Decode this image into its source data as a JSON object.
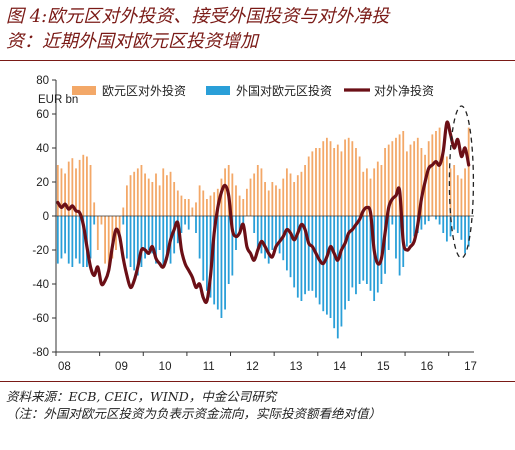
{
  "title_line1": "图 4:欧元区对外投资、接受外国投资与对外净投",
  "title_line2": "资：近期外国对欧元区投资增加",
  "source": "资料来源：ECB, CEIC，WIND，中金公司研究",
  "note": "（注：外国对欧元区投资为负表示资金流向，实际投资额看绝对值）",
  "colors": {
    "outward": "#f3a868",
    "inward": "#2a9fd8",
    "net": "#6b0f16",
    "axis": "#333333",
    "ellipse": "#222222"
  },
  "chart_data": {
    "type": "bar",
    "yunit": "EUR bn",
    "ylim": [
      -80,
      80
    ],
    "yticks": [
      -80,
      -60,
      -40,
      -20,
      0,
      20,
      40,
      60,
      80
    ],
    "xticks": [
      "08",
      "09",
      "10",
      "11",
      "12",
      "13",
      "14",
      "15",
      "16",
      "17"
    ],
    "x_start": 2008.0,
    "x_end": 2017.58,
    "months": 114,
    "legend_position": "top",
    "grid": false,
    "series": [
      {
        "name": "欧元区对外投资",
        "kind": "bar",
        "values": [
          30,
          28,
          25,
          32,
          34,
          28,
          33,
          36,
          35,
          30,
          8,
          -20,
          -5,
          -28,
          -30,
          -25,
          -20,
          -10,
          5,
          18,
          24,
          26,
          28,
          30,
          25,
          22,
          20,
          25,
          18,
          28,
          24,
          26,
          20,
          15,
          12,
          10,
          10,
          5,
          8,
          18,
          15,
          10,
          12,
          14,
          16,
          22,
          28,
          30,
          25,
          18,
          12,
          10,
          16,
          22,
          25,
          30,
          28,
          20,
          15,
          20,
          18,
          16,
          22,
          28,
          25,
          20,
          24,
          26,
          30,
          35,
          38,
          40,
          40,
          44,
          46,
          44,
          40,
          42,
          38,
          45,
          46,
          44,
          40,
          35,
          26,
          28,
          22,
          28,
          32,
          30,
          40,
          42,
          44,
          46,
          48,
          50,
          38,
          42,
          44,
          46,
          40,
          36,
          44,
          48,
          50,
          52,
          38,
          35,
          28,
          30,
          24,
          22,
          28,
          52
        ]
      },
      {
        "name": "外国对欧元区投资",
        "kind": "bar",
        "values": [
          -28,
          -25,
          -22,
          -28,
          -30,
          -25,
          -28,
          -30,
          -30,
          -25,
          -5,
          0,
          0,
          0,
          0,
          0,
          0,
          0,
          -5,
          -25,
          -30,
          -32,
          -35,
          -30,
          -25,
          -20,
          -22,
          -28,
          -20,
          -30,
          -26,
          -28,
          -22,
          -16,
          -10,
          -5,
          -8,
          0,
          -10,
          -25,
          -38,
          -44,
          -48,
          -52,
          -55,
          -60,
          -55,
          -40,
          -35,
          -20,
          -10,
          -5,
          0,
          0,
          -10,
          -20,
          -22,
          -25,
          -28,
          -20,
          -18,
          -22,
          -26,
          -32,
          -36,
          -42,
          -48,
          -50,
          -46,
          -44,
          -44,
          -48,
          -52,
          -56,
          -58,
          -60,
          -66,
          -72,
          -65,
          -55,
          -50,
          -42,
          -46,
          -40,
          -38,
          -40,
          -44,
          -50,
          -45,
          -40,
          -34,
          -20,
          -5,
          -25,
          -35,
          -30,
          -18,
          -16,
          -12,
          -10,
          -8,
          -5,
          -3,
          0,
          -2,
          -5,
          -10,
          -15,
          -12,
          -8,
          -10,
          -14,
          -22,
          -18
        ]
      },
      {
        "name": "对外净投资",
        "kind": "line",
        "values": [
          8,
          5,
          7,
          4,
          6,
          3,
          2,
          -5,
          -18,
          -30,
          -35,
          -30,
          -40,
          -38,
          -32,
          -18,
          -8,
          -12,
          -25,
          -35,
          -42,
          -38,
          -30,
          -20,
          -20,
          -22,
          -18,
          -25,
          -28,
          -30,
          -24,
          -14,
          -8,
          -4,
          -20,
          -28,
          -32,
          -36,
          -42,
          -40,
          -48,
          -50,
          -35,
          -10,
          5,
          14,
          18,
          12,
          -8,
          -12,
          -10,
          -5,
          -18,
          -22,
          -26,
          -20,
          -15,
          -18,
          -22,
          -24,
          -18,
          -15,
          -12,
          -8,
          -10,
          -14,
          -10,
          -5,
          -8,
          -16,
          -18,
          -22,
          -26,
          -28,
          -24,
          -18,
          -22,
          -26,
          -20,
          -16,
          -10,
          -8,
          -5,
          -2,
          3,
          5,
          2,
          -20,
          -28,
          -25,
          -10,
          5,
          10,
          12,
          15,
          -15,
          -20,
          -18,
          -15,
          -5,
          10,
          20,
          28,
          30,
          32,
          30,
          38,
          55,
          48,
          40,
          45,
          35,
          40,
          30
        ]
      }
    ]
  }
}
